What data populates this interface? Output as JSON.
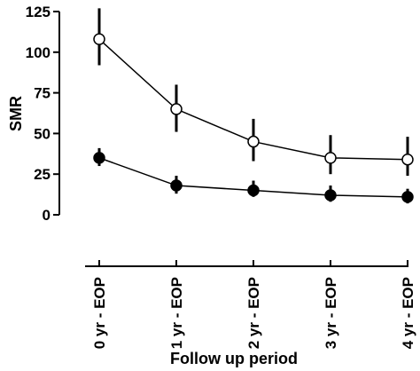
{
  "chart_data": {
    "type": "line",
    "categories": [
      "0 yr - EOP",
      "1 yr - EOP",
      "2 yr - EOP",
      "3 yr - EOP",
      "4 yr - EOP"
    ],
    "xlabel": "Follow up period",
    "ylabel": "SMR",
    "ylim": [
      0,
      125
    ],
    "yticks": [
      0,
      25,
      50,
      75,
      100,
      125
    ],
    "grid": false,
    "series": [
      {
        "marker": "open-circle",
        "values": [
          108,
          65,
          45,
          35,
          34
        ],
        "err_low": [
          92,
          51,
          33,
          25,
          24
        ],
        "err_high": [
          127,
          80,
          59,
          49,
          48
        ]
      },
      {
        "marker": "filled-circle",
        "values": [
          35,
          18,
          15,
          12,
          11
        ],
        "err_low": [
          30,
          13,
          11,
          8,
          7
        ],
        "err_high": [
          41,
          24,
          21,
          18,
          16
        ]
      }
    ]
  }
}
